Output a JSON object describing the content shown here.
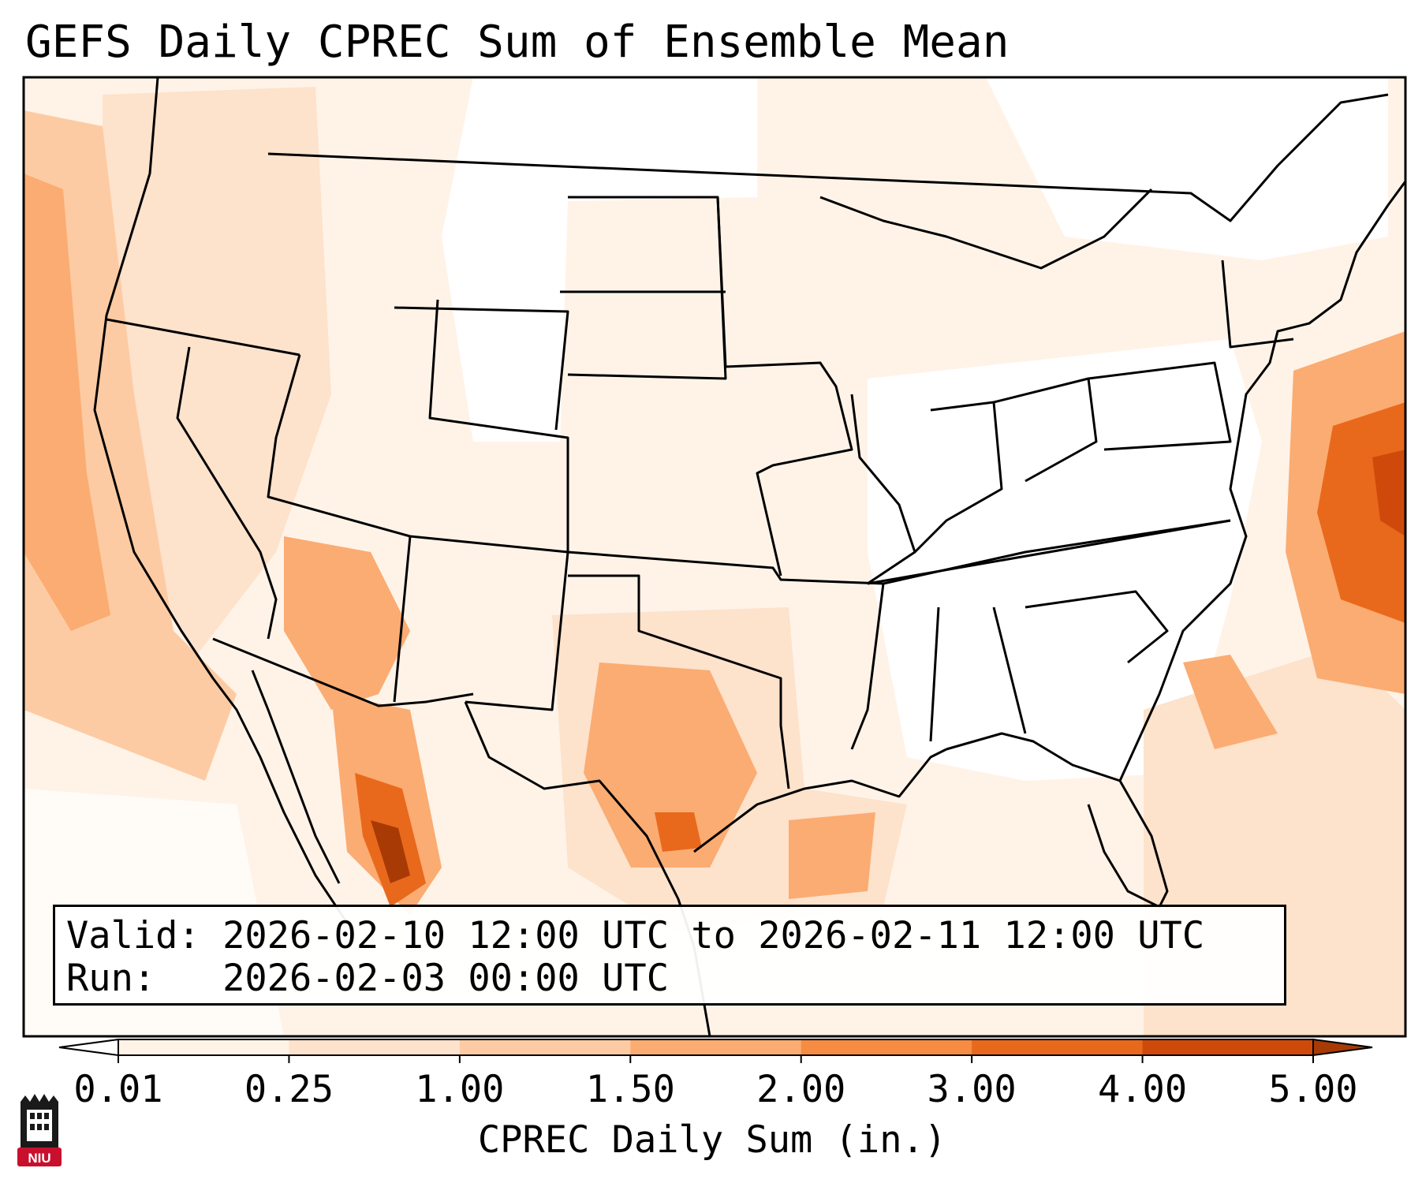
{
  "title": "GEFS Daily CPREC Sum of Ensemble Mean",
  "info": {
    "valid_label": "Valid:",
    "valid_value": "2026-02-10 12:00 UTC to 2026-02-11 12:00 UTC",
    "run_label": "Run:",
    "run_value": "2026-02-03 00:00 UTC"
  },
  "colorbar": {
    "label": "CPREC Daily Sum (in.)",
    "ticks": [
      "0.01",
      "0.25",
      "1.00",
      "1.50",
      "2.00",
      "3.00",
      "4.00",
      "5.00"
    ],
    "colors": [
      "#fff3e8",
      "#fde2cc",
      "#fdcba3",
      "#fbac72",
      "#f68b42",
      "#e9691c",
      "#cf4a0a"
    ],
    "under_color": "#ffffff",
    "over_color": "#a83a05"
  },
  "logo": {
    "text": "NIU",
    "color": "#c8102e"
  },
  "map": {
    "region": "Contiguous United States",
    "projection": "Lambert Conformal",
    "coastline_color": "#000000"
  }
}
